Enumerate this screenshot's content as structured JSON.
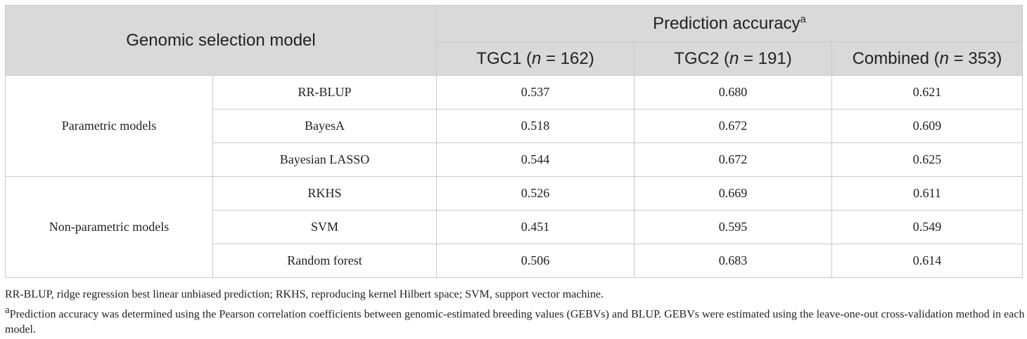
{
  "table": {
    "header": {
      "model_col": "Genomic selection model",
      "accuracy_group": "Prediction accuracy",
      "accuracy_sup": "a",
      "columns": [
        {
          "pre": "TGC1 (",
          "n": "n",
          "post": " = 162)"
        },
        {
          "pre": "TGC2 (",
          "n": "n",
          "post": " = 191)"
        },
        {
          "pre": "Combined (",
          "n": "n",
          "post": " = 353)"
        }
      ]
    },
    "groups": [
      {
        "name": "Parametric models",
        "rows": [
          {
            "model": "RR-BLUP",
            "tgc1": "0.537",
            "tgc2": "0.680",
            "combined": "0.621"
          },
          {
            "model": "BayesA",
            "tgc1": "0.518",
            "tgc2": "0.672",
            "combined": "0.609"
          },
          {
            "model": "Bayesian LASSO",
            "tgc1": "0.544",
            "tgc2": "0.672",
            "combined": "0.625"
          }
        ]
      },
      {
        "name": "Non-parametric models",
        "rows": [
          {
            "model": "RKHS",
            "tgc1": "0.526",
            "tgc2": "0.669",
            "combined": "0.611"
          },
          {
            "model": "SVM",
            "tgc1": "0.451",
            "tgc2": "0.595",
            "combined": "0.549"
          },
          {
            "model": "Random forest",
            "tgc1": "0.506",
            "tgc2": "0.683",
            "combined": "0.614"
          }
        ]
      }
    ]
  },
  "footnotes": {
    "abbreviations": "RR-BLUP, ridge regression best linear unbiased prediction; RKHS, reproducing kernel Hilbert space; SVM, support vector machine.",
    "a_marker": "a",
    "a_text": "Prediction accuracy was determined using the Pearson correlation coefficients between genomic-estimated breeding values (GEBVs) and BLUP. GEBVs were estimated using the leave-one-out cross-validation method in each model."
  }
}
